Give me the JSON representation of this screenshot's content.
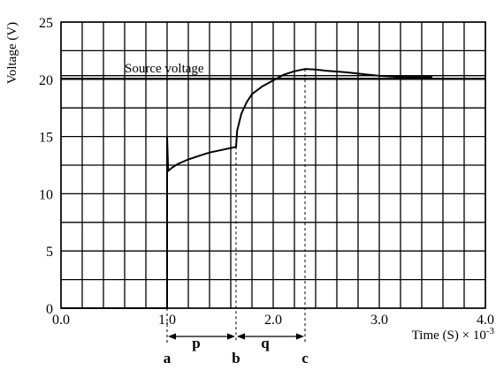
{
  "chart_data": {
    "type": "line",
    "title": "",
    "xlabel": "Time (S) × 10",
    "xlabel_exponent": "-3",
    "ylabel": "Voltage (V)",
    "xlim": [
      0.0,
      4.0
    ],
    "ylim": [
      0,
      25
    ],
    "grid": true,
    "x_tick_labels": [
      "0.0",
      "1.0",
      "2.0",
      "3.0",
      "4.0"
    ],
    "y_tick_labels": [
      "0",
      "5",
      "10",
      "15",
      "20",
      "25"
    ],
    "x_ticks": [
      0,
      1,
      2,
      3,
      4
    ],
    "y_ticks": [
      0,
      5,
      10,
      15,
      20,
      25
    ],
    "grid_x_step": 0.2,
    "grid_y_step": 2.5,
    "reference_line": {
      "label": "Source voltage",
      "value": 20.2
    },
    "series": [
      {
        "values_xy": [
          [
            0.0,
            0.0
          ],
          [
            1.0,
            0.0
          ],
          [
            1.0,
            15.0
          ],
          [
            1.01,
            12.0
          ],
          [
            1.05,
            12.3
          ],
          [
            1.1,
            12.6
          ],
          [
            1.2,
            13.0
          ],
          [
            1.3,
            13.3
          ],
          [
            1.4,
            13.6
          ],
          [
            1.5,
            13.8
          ],
          [
            1.6,
            14.0
          ],
          [
            1.65,
            14.1
          ],
          [
            1.66,
            15.5
          ],
          [
            1.7,
            17.0
          ],
          [
            1.75,
            18.0
          ],
          [
            1.8,
            18.7
          ],
          [
            1.9,
            19.4
          ],
          [
            2.0,
            19.9
          ],
          [
            2.1,
            20.4
          ],
          [
            2.2,
            20.7
          ],
          [
            2.3,
            20.9
          ],
          [
            2.4,
            20.85
          ],
          [
            2.5,
            20.75
          ],
          [
            2.7,
            20.6
          ],
          [
            2.9,
            20.4
          ],
          [
            3.0,
            20.3
          ],
          [
            3.2,
            20.2
          ],
          [
            3.5,
            20.2
          ]
        ]
      }
    ],
    "markers": [
      {
        "label": "a",
        "x": 1.0
      },
      {
        "label": "b",
        "x": 1.65
      },
      {
        "label": "c",
        "x": 2.3
      }
    ],
    "intervals": [
      {
        "label": "p",
        "from": "a",
        "to": "b"
      },
      {
        "label": "q",
        "from": "b",
        "to": "c"
      }
    ]
  }
}
